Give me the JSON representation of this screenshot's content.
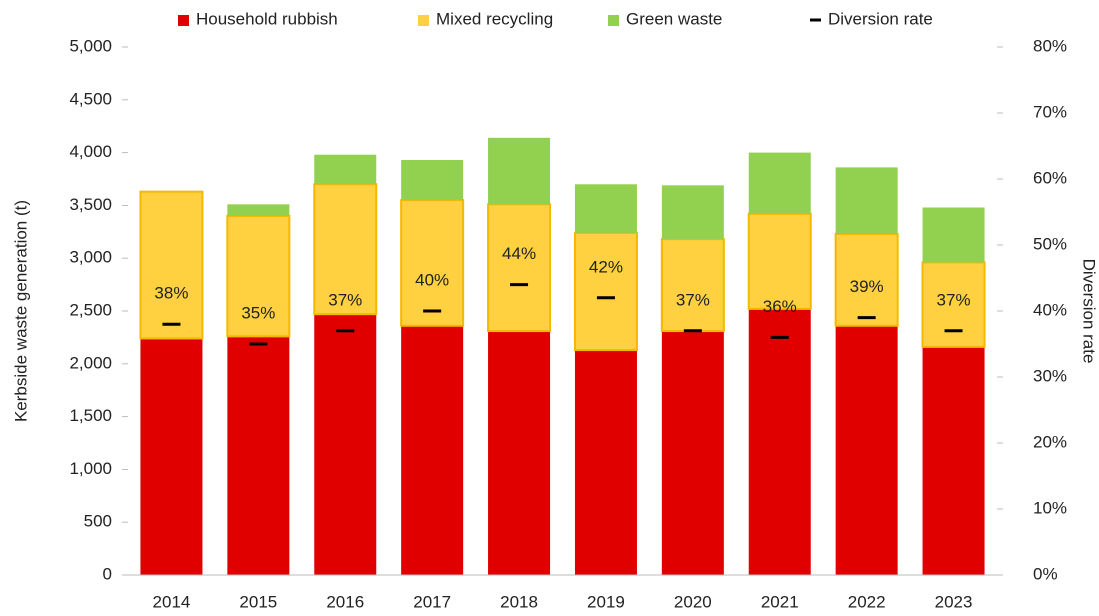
{
  "chart_data": {
    "type": "bar",
    "stacked": true,
    "categories": [
      "2014",
      "2015",
      "2016",
      "2017",
      "2018",
      "2019",
      "2020",
      "2021",
      "2022",
      "2023"
    ],
    "series": [
      {
        "name": "Household rubbish",
        "color": "#e00000",
        "values": [
          2240,
          2260,
          2470,
          2360,
          2310,
          2130,
          2310,
          2520,
          2360,
          2160
        ]
      },
      {
        "name": "Mixed recycling",
        "color": "#ffd040",
        "edge_color": "#f5b800",
        "values": [
          1390,
          1140,
          1230,
          1190,
          1200,
          1110,
          870,
          900,
          870,
          800
        ]
      },
      {
        "name": "Green waste",
        "color": "#92d050",
        "values": [
          0,
          110,
          280,
          380,
          630,
          460,
          510,
          580,
          630,
          520
        ]
      },
      {
        "name": "Diversion rate",
        "color": "#000000",
        "axis": "y2",
        "marker": "dash",
        "values": [
          38,
          35,
          37,
          40,
          44,
          42,
          37,
          36,
          39,
          37
        ],
        "value_labels": [
          "38%",
          "35%",
          "37%",
          "40%",
          "44%",
          "42%",
          "37%",
          "36%",
          "39%",
          "37%"
        ]
      }
    ],
    "ylabel": "Kerbside waste generation (t)",
    "y2label": "Diversion rate",
    "ylim": [
      0,
      5000
    ],
    "yticks": [
      0,
      500,
      {
        "value": 1000,
        "label": "1,000"
      },
      {
        "value": 1500,
        "label": "1,500"
      },
      {
        "value": 2000,
        "label": "2,000"
      },
      {
        "value": 2500,
        "label": "2,500"
      },
      {
        "value": 3000,
        "label": "3,000"
      },
      {
        "value": 3500,
        "label": "3,500"
      },
      {
        "value": 4000,
        "label": "4,000"
      },
      {
        "value": 4500,
        "label": "4,500"
      },
      {
        "value": 5000,
        "label": "5,000"
      }
    ],
    "y2lim": [
      0,
      80
    ],
    "y2ticks": [
      {
        "value": 0,
        "label": "0%"
      },
      {
        "value": 10,
        "label": "10%"
      },
      {
        "value": 20,
        "label": "20%"
      },
      {
        "value": 30,
        "label": "30%"
      },
      {
        "value": 40,
        "label": "40%"
      },
      {
        "value": 50,
        "label": "50%"
      },
      {
        "value": 60,
        "label": "60%"
      },
      {
        "value": 70,
        "label": "70%"
      },
      {
        "value": 80,
        "label": "80%"
      }
    ],
    "legend": "top"
  }
}
